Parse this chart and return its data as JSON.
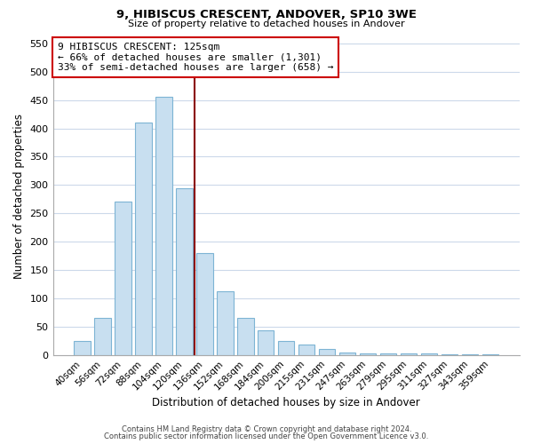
{
  "title1": "9, HIBISCUS CRESCENT, ANDOVER, SP10 3WE",
  "title2": "Size of property relative to detached houses in Andover",
  "xlabel": "Distribution of detached houses by size in Andover",
  "ylabel": "Number of detached properties",
  "bar_labels": [
    "40sqm",
    "56sqm",
    "72sqm",
    "88sqm",
    "104sqm",
    "120sqm",
    "136sqm",
    "152sqm",
    "168sqm",
    "184sqm",
    "200sqm",
    "215sqm",
    "231sqm",
    "247sqm",
    "263sqm",
    "279sqm",
    "295sqm",
    "311sqm",
    "327sqm",
    "343sqm",
    "359sqm"
  ],
  "bar_values": [
    25,
    65,
    270,
    410,
    455,
    295,
    180,
    113,
    65,
    43,
    25,
    18,
    11,
    5,
    3,
    2,
    2,
    2,
    1,
    1,
    1
  ],
  "bar_color": "#c8dff0",
  "bar_edge_color": "#7db4d4",
  "property_label": "9 HIBISCUS CRESCENT: 125sqm",
  "annotation_line1": "← 66% of detached houses are smaller (1,301)",
  "annotation_line2": "33% of semi-detached houses are larger (658) →",
  "vline_color": "#8b0000",
  "ylim": [
    0,
    560
  ],
  "yticks": [
    0,
    50,
    100,
    150,
    200,
    250,
    300,
    350,
    400,
    450,
    500,
    550
  ],
  "footer1": "Contains HM Land Registry data © Crown copyright and database right 2024.",
  "footer2": "Contains public sector information licensed under the Open Government Licence v3.0.",
  "background_color": "#ffffff",
  "grid_color": "#ccd9ea"
}
